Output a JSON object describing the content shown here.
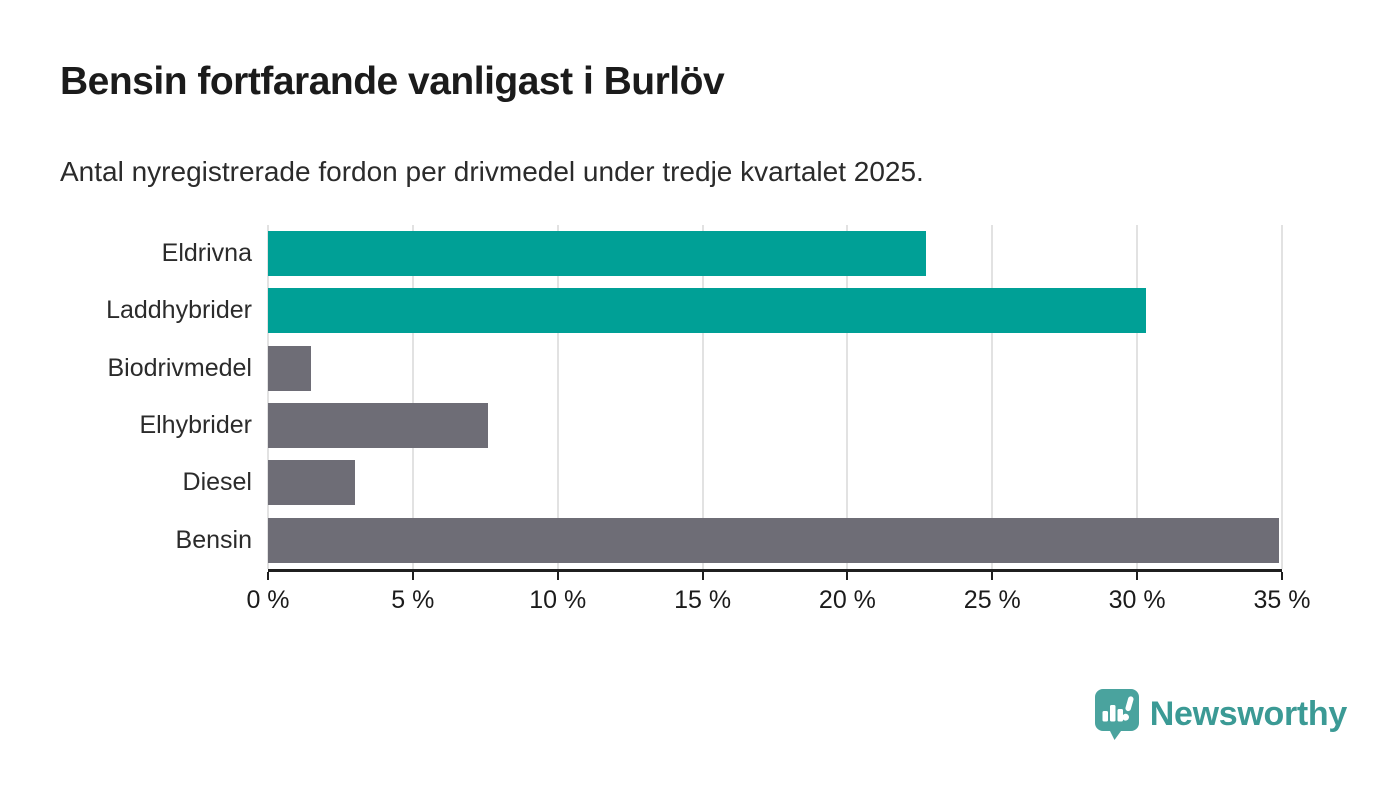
{
  "title": "Bensin fortfarande vanligast i Burlöv",
  "subtitle": "Antal nyregistrerade fordon per drivmedel under tredje kvartalet 2025.",
  "logo": {
    "text": "Newsworthy",
    "icon": "newsworthy-pin-barchart-icon",
    "color": "#3b9a95",
    "icon_color": "#4aa39e"
  },
  "colors": {
    "highlight_teal": "#00a096",
    "neutral_gray": "#6e6d76",
    "axis_line": "#1f1f1f",
    "gridline": "#e2e2e2",
    "text_dark": "#1b1b1b"
  },
  "chart_data": {
    "type": "bar",
    "orientation": "horizontal",
    "title": "Bensin fortfarande vanligast i Burlöv",
    "subtitle": "Antal nyregistrerade fordon per drivmedel under tredje kvartalet 2025.",
    "categories": [
      "Eldrivna",
      "Laddhybrider",
      "Biodrivmedel",
      "Elhybrider",
      "Diesel",
      "Bensin"
    ],
    "values": [
      22.7,
      30.3,
      1.5,
      7.6,
      3.0,
      34.9
    ],
    "unit": "%",
    "bar_colors": [
      "#00a096",
      "#00a096",
      "#6e6d76",
      "#6e6d76",
      "#6e6d76",
      "#6e6d76"
    ],
    "xlim": [
      0,
      35
    ],
    "x_tick_values": [
      0,
      5,
      10,
      15,
      20,
      25,
      30,
      35
    ],
    "x_tick_labels": [
      "0 %",
      "5 %",
      "10 %",
      "15 %",
      "20 %",
      "25 %",
      "30 %",
      "35 %"
    ],
    "grid": "vertical-gridlines-on",
    "legend": "none",
    "xlabel": "",
    "ylabel": ""
  }
}
